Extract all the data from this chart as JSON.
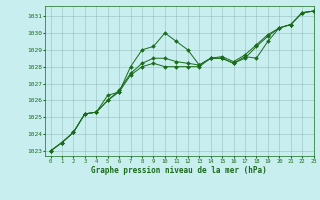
{
  "title": "Graphe pression niveau de la mer (hPa)",
  "xlim": [
    -0.5,
    23
  ],
  "ylim": [
    1022.7,
    1031.6
  ],
  "yticks": [
    1023,
    1024,
    1025,
    1026,
    1027,
    1028,
    1029,
    1030,
    1031
  ],
  "xticks": [
    0,
    1,
    2,
    3,
    4,
    5,
    6,
    7,
    8,
    9,
    10,
    11,
    12,
    13,
    14,
    15,
    16,
    17,
    18,
    19,
    20,
    21,
    22,
    23
  ],
  "bg_color": "#c8eef0",
  "line_color": "#1a6b1a",
  "grid_color": "#9bbfbf",
  "series1": {
    "x": [
      0,
      1,
      2,
      3,
      4,
      5,
      6,
      7,
      8,
      9,
      10,
      11,
      12,
      13,
      14,
      15,
      16,
      17,
      18,
      19,
      20,
      21,
      22,
      23
    ],
    "y": [
      1023.0,
      1023.5,
      1024.1,
      1025.2,
      1025.3,
      1026.3,
      1026.5,
      1028.0,
      1029.0,
      1029.2,
      1030.0,
      1029.5,
      1029.0,
      1028.1,
      1028.5,
      1028.5,
      1028.2,
      1028.6,
      1028.5,
      1029.5,
      1030.3,
      1030.5,
      1031.2,
      1031.3
    ]
  },
  "series2": {
    "x": [
      0,
      1,
      2,
      3,
      4,
      5,
      6,
      7,
      8,
      9,
      10,
      11,
      12,
      13,
      14,
      15,
      16,
      17,
      18,
      19,
      20,
      21,
      22,
      23
    ],
    "y": [
      1023.0,
      1023.5,
      1024.1,
      1025.2,
      1025.3,
      1026.0,
      1026.5,
      1027.5,
      1028.0,
      1028.2,
      1028.0,
      1028.0,
      1028.0,
      1028.0,
      1028.5,
      1028.5,
      1028.2,
      1028.5,
      1029.2,
      1029.8,
      1030.3,
      1030.5,
      1031.2,
      1031.3
    ]
  },
  "series3": {
    "x": [
      0,
      1,
      2,
      3,
      4,
      5,
      6,
      7,
      8,
      9,
      10,
      11,
      12,
      13,
      14,
      15,
      16,
      17,
      18,
      19,
      20,
      21,
      22,
      23
    ],
    "y": [
      1023.0,
      1023.5,
      1024.1,
      1025.2,
      1025.3,
      1026.0,
      1026.6,
      1027.6,
      1028.2,
      1028.5,
      1028.5,
      1028.3,
      1028.2,
      1028.1,
      1028.5,
      1028.6,
      1028.3,
      1028.7,
      1029.3,
      1029.9,
      1030.3,
      1030.5,
      1031.2,
      1031.3
    ]
  },
  "figsize": [
    3.2,
    2.0
  ],
  "dpi": 100
}
